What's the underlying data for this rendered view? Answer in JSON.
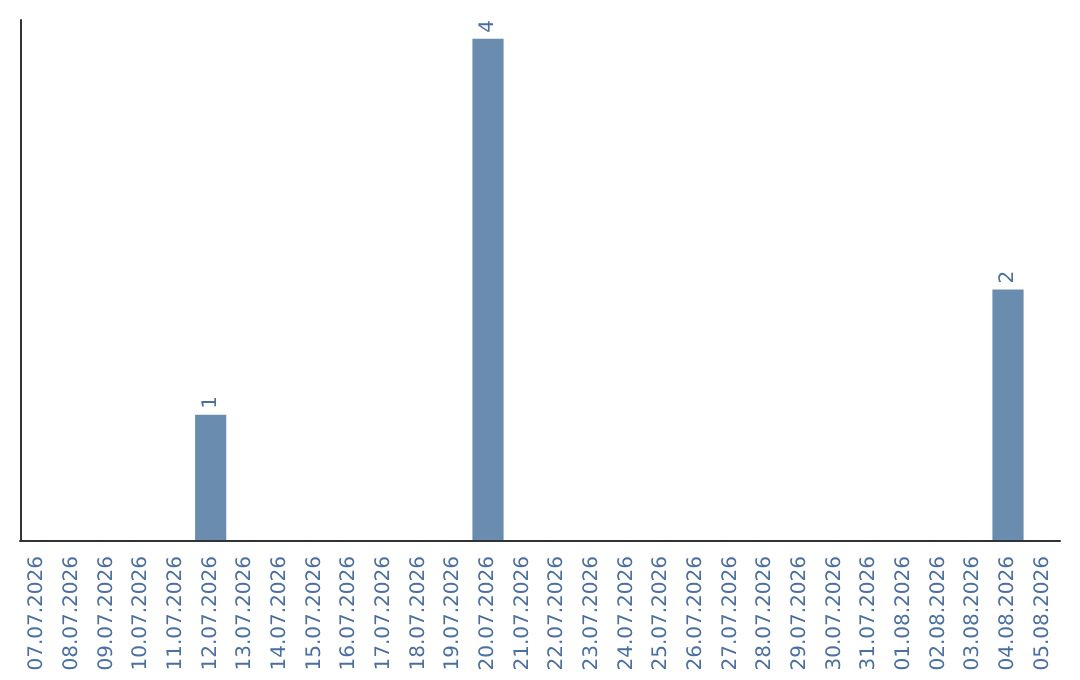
{
  "chart_data": {
    "type": "bar",
    "categories": [
      "07.07.2026",
      "08.07.2026",
      "09.07.2026",
      "10.07.2026",
      "11.07.2026",
      "12.07.2026",
      "13.07.2026",
      "14.07.2026",
      "15.07.2026",
      "16.07.2026",
      "17.07.2026",
      "18.07.2026",
      "19.07.2026",
      "20.07.2026",
      "21.07.2026",
      "22.07.2026",
      "23.07.2026",
      "24.07.2026",
      "25.07.2026",
      "26.07.2026",
      "27.07.2026",
      "28.07.2026",
      "29.07.2026",
      "30.07.2026",
      "31.07.2026",
      "01.08.2026",
      "02.08.2026",
      "03.08.2026",
      "04.08.2026",
      "05.08.2026"
    ],
    "values": [
      0,
      0,
      0,
      0,
      0,
      1,
      0,
      0,
      0,
      0,
      0,
      0,
      0,
      4,
      0,
      0,
      0,
      0,
      0,
      0,
      0,
      0,
      0,
      0,
      0,
      0,
      0,
      0,
      2,
      0
    ],
    "value_labels": [
      null,
      null,
      null,
      null,
      null,
      "1",
      null,
      null,
      null,
      null,
      null,
      null,
      null,
      "4",
      null,
      null,
      null,
      null,
      null,
      null,
      null,
      null,
      null,
      null,
      null,
      null,
      null,
      null,
      "2",
      null
    ],
    "color": "#6a8caf",
    "ylim": [
      0,
      4.15
    ],
    "grid": false
  }
}
